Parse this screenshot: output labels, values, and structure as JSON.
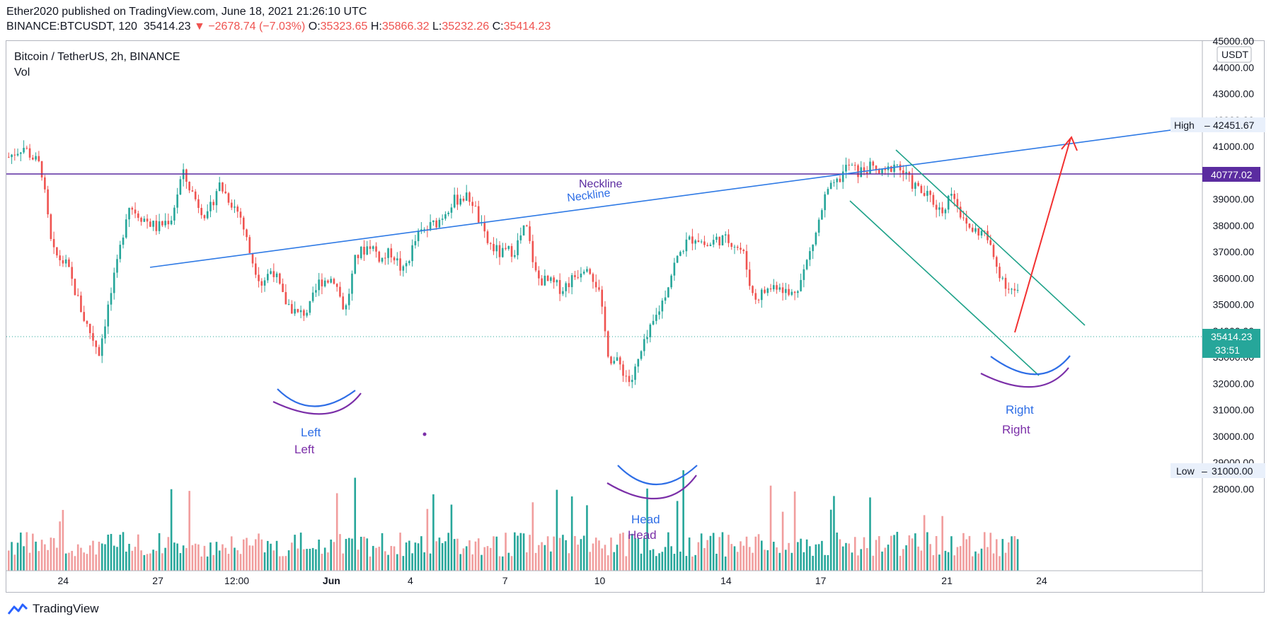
{
  "header": {
    "publish_line": "Ether2020 published on TradingView.com, June 18, 2021 21:26:10 UTC",
    "symbol": "BINANCE:BTCUSDT, 120",
    "last": "35414.23",
    "change_arrow": "▼",
    "change": "−2678.74 (−7.03%)",
    "open_label": "O:",
    "open": "35323.65",
    "high_label": "H:",
    "high": "35866.32",
    "low_label": "L:",
    "low": "35232.26",
    "close_label": "C:",
    "close": "35414.23"
  },
  "legend": {
    "title": "Bitcoin / TetherUS, 2h, BINANCE",
    "volume": "Vol"
  },
  "currency_badge": "USDT",
  "footer": {
    "brand": "TradingView"
  },
  "colors": {
    "up": "#26a69a",
    "down": "#ef5350",
    "vol_up": "#26a69a",
    "vol_down": "#f19d9d",
    "trendline": "#2f7ae5",
    "neckline_h": "#5b2ca0",
    "channel": "#1ea289",
    "arrow": "#f23030",
    "blue_annot": "#2e6ee6",
    "purple_annot": "#7b2fa8"
  },
  "chart_data": {
    "type": "candlestick",
    "title": "Bitcoin / TetherUS, 2h, BINANCE",
    "y_axis": {
      "unit": "USDT",
      "ylim": [
        27700,
        45100
      ],
      "ticks": [
        "45000.00",
        "44000.00",
        "43000.00",
        "42000.00",
        "41000.00",
        "40000.00",
        "39000.00",
        "38000.00",
        "37000.00",
        "36000.00",
        "35000.00",
        "34000.00",
        "33000.00",
        "32000.00",
        "31000.00",
        "30000.00",
        "29000.00",
        "28000.00"
      ],
      "tick_values": [
        45000,
        44000,
        43000,
        42000,
        41000,
        40000,
        39000,
        38000,
        37000,
        36000,
        35000,
        34000,
        33000,
        32000,
        31000,
        30000,
        29000,
        28000
      ]
    },
    "x_axis": {
      "ticks": [
        "24",
        "27",
        "12:00",
        "Jun",
        "4",
        "7",
        "10",
        "14",
        "17",
        "21",
        "24"
      ],
      "tick_days": [
        1.8,
        4.8,
        7.3,
        10.3,
        12.8,
        15.8,
        18.8,
        22.8,
        25.8,
        29.8,
        32.8
      ]
    },
    "price_labels": [
      {
        "label": "High",
        "value": "42451.67"
      },
      {
        "label": "",
        "value": "40777.02"
      },
      {
        "label": "",
        "value": "35414.23",
        "extra": "33:51"
      },
      {
        "label": "Low",
        "value": "31000.00"
      }
    ],
    "close_path": [
      [
        0,
        40600
      ],
      [
        0.4,
        41000
      ],
      [
        0.9,
        40200
      ],
      [
        1.2,
        37000
      ],
      [
        1.6,
        36500
      ],
      [
        2.1,
        34400
      ],
      [
        2.5,
        33200
      ],
      [
        2.7,
        34600
      ],
      [
        3.0,
        36500
      ],
      [
        3.3,
        38800
      ],
      [
        3.7,
        38300
      ],
      [
        4.1,
        37900
      ],
      [
        4.5,
        38300
      ],
      [
        4.8,
        40000
      ],
      [
        5.2,
        38900
      ],
      [
        5.5,
        38300
      ],
      [
        5.8,
        39600
      ],
      [
        6.1,
        39000
      ],
      [
        6.4,
        38400
      ],
      [
        6.7,
        36800
      ],
      [
        7.0,
        35800
      ],
      [
        7.3,
        36400
      ],
      [
        7.6,
        35200
      ],
      [
        8.0,
        34600
      ],
      [
        8.3,
        34800
      ],
      [
        8.6,
        35900
      ],
      [
        9.0,
        36000
      ],
      [
        9.3,
        34700
      ],
      [
        9.6,
        36800
      ],
      [
        10.0,
        37300
      ],
      [
        10.3,
        36700
      ],
      [
        10.6,
        37000
      ],
      [
        10.9,
        36200
      ],
      [
        11.3,
        37600
      ],
      [
        11.6,
        37900
      ],
      [
        11.9,
        38200
      ],
      [
        12.2,
        38800
      ],
      [
        12.5,
        39100
      ],
      [
        12.8,
        39000
      ],
      [
        13.2,
        37400
      ],
      [
        13.6,
        36900
      ],
      [
        14.0,
        37100
      ],
      [
        14.3,
        38000
      ],
      [
        14.6,
        36000
      ],
      [
        15.0,
        35800
      ],
      [
        15.3,
        35600
      ],
      [
        15.6,
        36000
      ],
      [
        16.0,
        36600
      ],
      [
        16.3,
        35600
      ],
      [
        16.6,
        33000
      ],
      [
        16.9,
        32700
      ],
      [
        17.2,
        32000
      ],
      [
        17.5,
        33200
      ],
      [
        17.8,
        34200
      ],
      [
        18.1,
        35200
      ],
      [
        18.4,
        36500
      ],
      [
        18.7,
        37300
      ],
      [
        19.0,
        37600
      ],
      [
        19.3,
        37200
      ],
      [
        19.6,
        37500
      ],
      [
        20.0,
        37400
      ],
      [
        20.3,
        37000
      ],
      [
        20.6,
        35200
      ],
      [
        20.9,
        35500
      ],
      [
        21.3,
        35800
      ],
      [
        21.6,
        35300
      ],
      [
        21.9,
        35900
      ],
      [
        22.3,
        37600
      ],
      [
        22.6,
        39200
      ],
      [
        22.9,
        39600
      ],
      [
        23.2,
        40300
      ],
      [
        23.5,
        40000
      ],
      [
        23.8,
        40200
      ],
      [
        24.2,
        39900
      ],
      [
        24.5,
        40400
      ],
      [
        24.9,
        39700
      ],
      [
        25.2,
        39300
      ],
      [
        25.5,
        39000
      ],
      [
        25.8,
        38500
      ],
      [
        26.1,
        39400
      ],
      [
        26.4,
        38100
      ],
      [
        26.7,
        37800
      ],
      [
        27.0,
        37700
      ],
      [
        27.3,
        36500
      ],
      [
        27.6,
        35700
      ],
      [
        27.9,
        35414
      ]
    ],
    "volume_note": "volume histogram at bottom, green for up bars, light red for down bars",
    "annotations": [
      {
        "text": "Neckline",
        "color": "purple_annot"
      },
      {
        "text": "Neckline",
        "color": "blue_annot"
      },
      {
        "text": "Left",
        "color": "blue_annot"
      },
      {
        "text": "Left",
        "color": "purple_annot"
      },
      {
        "text": "Head",
        "color": "blue_annot"
      },
      {
        "text": "Head",
        "color": "purple_annot"
      },
      {
        "text": "Right",
        "color": "blue_annot"
      },
      {
        "text": "Right",
        "color": "purple_annot"
      }
    ]
  }
}
